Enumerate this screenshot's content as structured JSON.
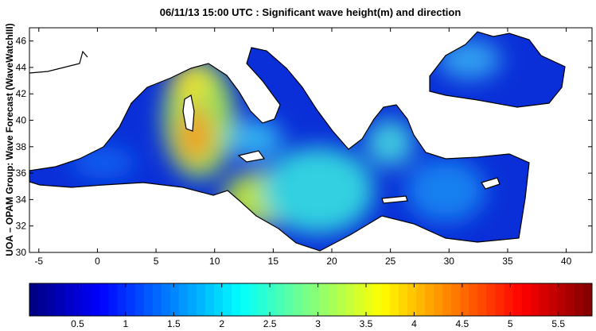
{
  "title": "06/11/13 15:00 UTC : Significant wave height(m) and direction",
  "side_label": "UOA – OPAM Group: Wave Forecast  (WaveWatchIII)",
  "map": {
    "xlim": [
      -5.8,
      42.2
    ],
    "ylim": [
      30,
      47
    ],
    "xticks": [
      -5,
      0,
      5,
      10,
      15,
      20,
      25,
      30,
      35,
      40
    ],
    "yticks": [
      30,
      32,
      34,
      36,
      38,
      40,
      42,
      44,
      46
    ]
  },
  "colorbar": {
    "lim": [
      0,
      5.85
    ],
    "ticks": [
      0.5,
      1,
      1.5,
      2,
      2.5,
      3,
      3.5,
      4,
      4.5,
      5,
      5.5
    ],
    "colormap": "jet"
  }
}
